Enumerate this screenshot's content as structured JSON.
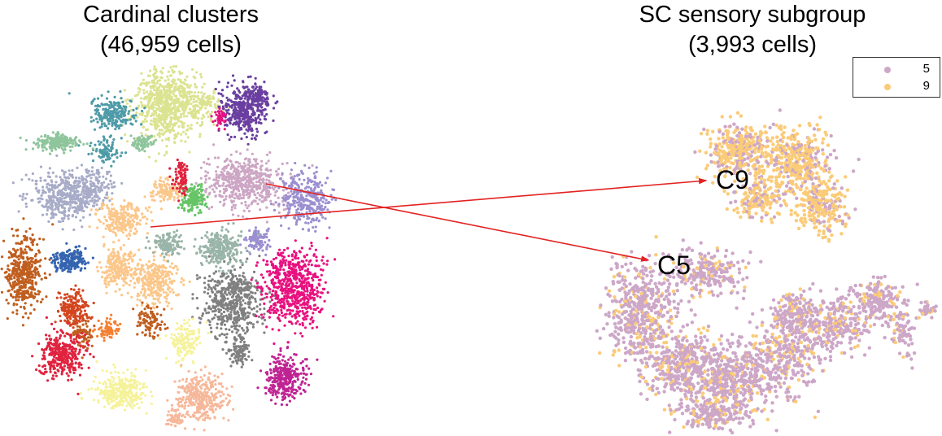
{
  "chart_data": [
    {
      "type": "scatter",
      "title": "Cardinal clusters\n(46,959 cells)",
      "title_lines": [
        "Cardinal clusters",
        "(46,959 cells)"
      ],
      "xlabel": "",
      "ylabel": "",
      "axes_visible": false,
      "grid": false,
      "clusters": [
        {
          "color": "#dbe390"
        },
        {
          "color": "#6a3fa0"
        },
        {
          "color": "#4e9ba8"
        },
        {
          "color": "#8fc59c"
        },
        {
          "color": "#a8acc8"
        },
        {
          "color": "#cca6c4"
        },
        {
          "color": "#9b8fd0"
        },
        {
          "color": "#66c466"
        },
        {
          "color": "#fbc78a"
        },
        {
          "color": "#c05e1f"
        },
        {
          "color": "#3464b0"
        },
        {
          "color": "#d4451f"
        },
        {
          "color": "#e0233f"
        },
        {
          "color": "#f57f30"
        },
        {
          "color": "#808080"
        },
        {
          "color": "#e8117f"
        },
        {
          "color": "#bf2392"
        },
        {
          "color": "#f6f29a"
        },
        {
          "color": "#f6b89a"
        },
        {
          "color": "#99b4a8"
        }
      ]
    },
    {
      "type": "scatter",
      "title": "SC sensory subgroup\n(3,993 cells)",
      "title_lines": [
        "SC sensory subgroup",
        "(3,993 cells)"
      ],
      "xlabel": "",
      "ylabel": "",
      "axes_visible": false,
      "grid": false,
      "legend": "top-right",
      "series": [
        {
          "name": "5",
          "color": "#cda7c8",
          "label": "C5"
        },
        {
          "name": "9",
          "color": "#fbcb78",
          "label": "C9"
        }
      ]
    }
  ],
  "annotations": {
    "arrow_color": "#e32222",
    "arrows": [
      {
        "from": "cluster 9 (left map)",
        "to": "C9"
      },
      {
        "from": "cluster 5 (left map)",
        "to": "C5"
      }
    ]
  }
}
